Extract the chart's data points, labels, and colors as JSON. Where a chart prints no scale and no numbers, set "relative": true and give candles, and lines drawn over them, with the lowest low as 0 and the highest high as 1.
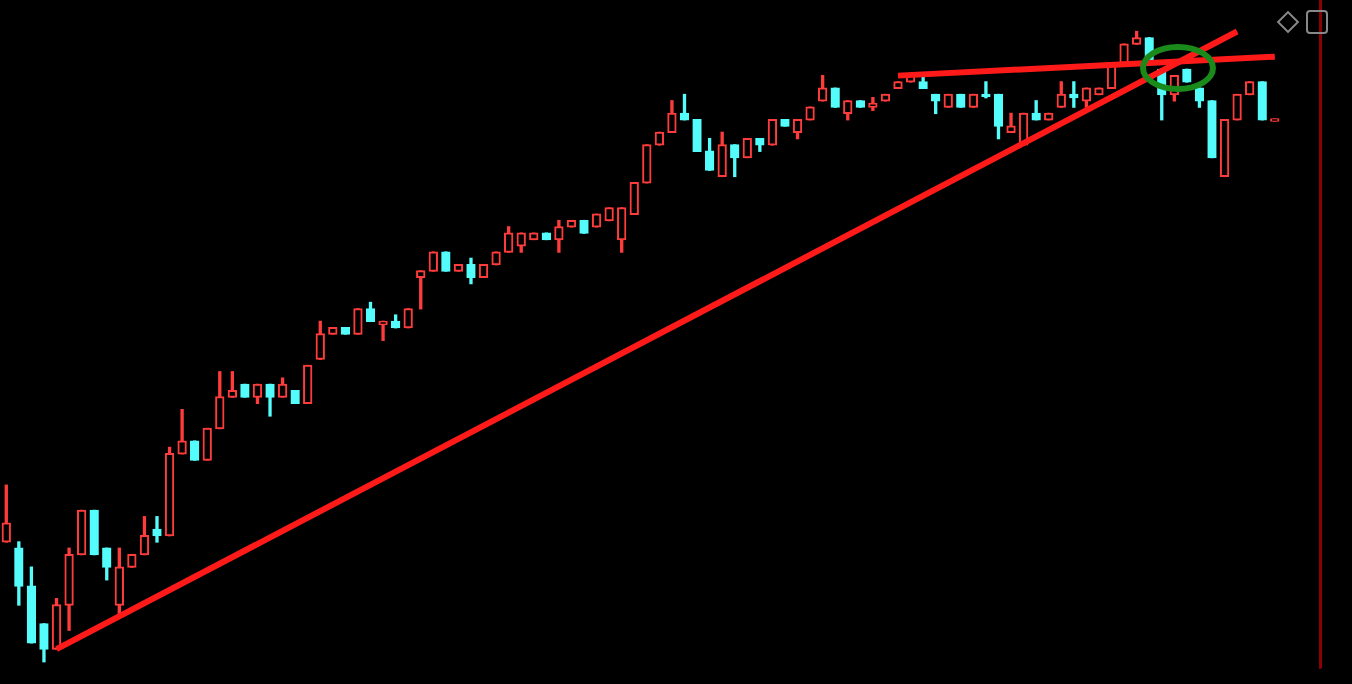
{
  "chart_data": {
    "type": "candlestick",
    "relative": true,
    "categories": [
      null,
      null,
      null,
      null,
      null,
      null,
      null,
      null,
      null,
      null,
      null,
      null,
      null,
      null,
      null,
      null,
      null,
      null,
      null,
      null,
      null,
      null,
      null,
      null,
      null,
      null,
      null,
      null,
      null,
      null,
      null,
      null,
      null,
      null,
      null,
      null,
      null,
      null,
      null,
      null,
      null,
      null,
      null,
      null,
      null,
      null,
      null,
      null,
      null,
      null,
      null,
      null,
      null,
      null,
      null,
      null,
      null,
      null,
      null,
      null,
      null,
      null,
      null,
      null,
      null,
      null,
      null,
      null,
      null,
      null,
      null,
      null,
      null,
      null,
      null,
      null,
      null,
      null,
      null,
      null,
      null,
      null,
      null,
      null,
      null,
      null,
      null,
      null,
      null,
      null,
      null,
      null,
      null,
      null,
      null,
      null,
      null,
      null,
      null,
      null,
      null,
      null
    ],
    "ohlc": [
      [
        0.19,
        0.28,
        0.19,
        0.22
      ],
      [
        0.18,
        0.19,
        0.09,
        0.12
      ],
      [
        0.12,
        0.15,
        0.03,
        0.03
      ],
      [
        0.06,
        0.06,
        0,
        0.02
      ],
      [
        0.02,
        0.1,
        0.02,
        0.09
      ],
      [
        0.09,
        0.18,
        0.05,
        0.17
      ],
      [
        0.17,
        0.24,
        0.17,
        0.24
      ],
      [
        0.24,
        0.24,
        0.17,
        0.17
      ],
      [
        0.18,
        0.18,
        0.13,
        0.15
      ],
      [
        0.09,
        0.18,
        0.07,
        0.15
      ],
      [
        0.15,
        0.17,
        0.15,
        0.17
      ],
      [
        0.17,
        0.23,
        0.17,
        0.2
      ],
      [
        0.21,
        0.23,
        0.19,
        0.2
      ],
      [
        0.2,
        0.34,
        0.2,
        0.33
      ],
      [
        0.33,
        0.4,
        0.33,
        0.35
      ],
      [
        0.35,
        0.35,
        0.32,
        0.32
      ],
      [
        0.32,
        0.37,
        0.32,
        0.37
      ],
      [
        0.37,
        0.46,
        0.37,
        0.42
      ],
      [
        0.42,
        0.46,
        0.42,
        0.43
      ],
      [
        0.44,
        0.44,
        0.42,
        0.42
      ],
      [
        0.42,
        0.44,
        0.41,
        0.44
      ],
      [
        0.44,
        0.44,
        0.39,
        0.42
      ],
      [
        0.42,
        0.45,
        0.42,
        0.44
      ],
      [
        0.43,
        0.43,
        0.41,
        0.41
      ],
      [
        0.41,
        0.47,
        0.41,
        0.47
      ],
      [
        0.48,
        0.54,
        0.48,
        0.52
      ],
      [
        0.52,
        0.53,
        0.52,
        0.53
      ],
      [
        0.53,
        0.53,
        0.52,
        0.52
      ],
      [
        0.52,
        0.56,
        0.52,
        0.56
      ],
      [
        0.56,
        0.57,
        0.54,
        0.54
      ],
      [
        0.535,
        0.54,
        0.51,
        0.54
      ],
      [
        0.54,
        0.55,
        0.53,
        0.53
      ],
      [
        0.53,
        0.56,
        0.53,
        0.56
      ],
      [
        0.61,
        0.62,
        0.56,
        0.62
      ],
      [
        0.62,
        0.65,
        0.62,
        0.65
      ],
      [
        0.65,
        0.65,
        0.62,
        0.62
      ],
      [
        0.62,
        0.63,
        0.62,
        0.63
      ],
      [
        0.63,
        0.64,
        0.6,
        0.61
      ],
      [
        0.61,
        0.63,
        0.61,
        0.63
      ],
      [
        0.63,
        0.65,
        0.63,
        0.65
      ],
      [
        0.65,
        0.69,
        0.65,
        0.68
      ],
      [
        0.66,
        0.68,
        0.65,
        0.68
      ],
      [
        0.67,
        0.68,
        0.67,
        0.68
      ],
      [
        0.68,
        0.68,
        0.67,
        0.67
      ],
      [
        0.67,
        0.7,
        0.65,
        0.69
      ],
      [
        0.69,
        0.7,
        0.69,
        0.7
      ],
      [
        0.7,
        0.7,
        0.68,
        0.68
      ],
      [
        0.69,
        0.71,
        0.69,
        0.71
      ],
      [
        0.7,
        0.72,
        0.7,
        0.72
      ],
      [
        0.67,
        0.72,
        0.65,
        0.72
      ],
      [
        0.71,
        0.76,
        0.71,
        0.76
      ],
      [
        0.76,
        0.82,
        0.76,
        0.82
      ],
      [
        0.82,
        0.84,
        0.82,
        0.84
      ],
      [
        0.84,
        0.89,
        0.84,
        0.87
      ],
      [
        0.87,
        0.9,
        0.86,
        0.86
      ],
      [
        0.86,
        0.86,
        0.81,
        0.81
      ],
      [
        0.81,
        0.83,
        0.78,
        0.78
      ],
      [
        0.77,
        0.84,
        0.77,
        0.82
      ],
      [
        0.82,
        0.82,
        0.77,
        0.8
      ],
      [
        0.8,
        0.83,
        0.8,
        0.83
      ],
      [
        0.83,
        0.83,
        0.81,
        0.82
      ],
      [
        0.82,
        0.86,
        0.82,
        0.86
      ],
      [
        0.86,
        0.86,
        0.85,
        0.85
      ],
      [
        0.84,
        0.86,
        0.83,
        0.86
      ],
      [
        0.86,
        0.88,
        0.86,
        0.88
      ],
      [
        0.89,
        0.93,
        0.89,
        0.91
      ],
      [
        0.91,
        0.91,
        0.88,
        0.88
      ],
      [
        0.87,
        0.89,
        0.86,
        0.89
      ],
      [
        0.89,
        0.89,
        0.88,
        0.88
      ],
      [
        0.88,
        0.895,
        0.875,
        0.886
      ],
      [
        0.89,
        0.9,
        0.89,
        0.9
      ],
      [
        0.91,
        0.92,
        0.91,
        0.92
      ],
      [
        0.92,
        0.93,
        0.92,
        0.93
      ],
      [
        0.92,
        0.93,
        0.91,
        0.91
      ],
      [
        0.9,
        0.9,
        0.87,
        0.89
      ],
      [
        0.88,
        0.9,
        0.88,
        0.9
      ],
      [
        0.9,
        0.9,
        0.88,
        0.88
      ],
      [
        0.88,
        0.9,
        0.88,
        0.9
      ],
      [
        0.9,
        0.92,
        0.895,
        0.897
      ],
      [
        0.9,
        0.9,
        0.83,
        0.85
      ],
      [
        0.84,
        0.87,
        0.84,
        0.85
      ],
      [
        0.82,
        0.87,
        0.82,
        0.87
      ],
      [
        0.87,
        0.89,
        0.86,
        0.86
      ],
      [
        0.86,
        0.87,
        0.86,
        0.87
      ],
      [
        0.88,
        0.92,
        0.88,
        0.9
      ],
      [
        0.9,
        0.92,
        0.88,
        0.895
      ],
      [
        0.89,
        0.91,
        0.88,
        0.91
      ],
      [
        0.9,
        0.91,
        0.9,
        0.91
      ],
      [
        0.91,
        0.95,
        0.91,
        0.95
      ],
      [
        0.95,
        0.98,
        0.95,
        0.98
      ],
      [
        0.98,
        1.0,
        0.98,
        0.99
      ],
      [
        0.99,
        0.99,
        0.95,
        0.95
      ],
      [
        0.94,
        0.94,
        0.86,
        0.9
      ],
      [
        0.9,
        0.93,
        0.89,
        0.93
      ],
      [
        0.94,
        0.94,
        0.92,
        0.92
      ],
      [
        0.91,
        0.91,
        0.88,
        0.89
      ],
      [
        0.89,
        0.89,
        0.8,
        0.8
      ],
      [
        0.77,
        0.86,
        0.77,
        0.86
      ],
      [
        0.86,
        0.9,
        0.86,
        0.9
      ],
      [
        0.9,
        0.92,
        0.9,
        0.92
      ],
      [
        0.92,
        0.92,
        0.86,
        0.86
      ],
      [
        0.858,
        0.861,
        0.858,
        0.861
      ]
    ],
    "series": [
      {
        "type": "line",
        "color": "#ff1a1a",
        "values": [
          null,
          null,
          null,
          null,
          0.02,
          null,
          null,
          null,
          null,
          null,
          null,
          null,
          null,
          null,
          null,
          null,
          null,
          null,
          null,
          null,
          null,
          null,
          null,
          null,
          null,
          null,
          null,
          null,
          null,
          null,
          null,
          null,
          null,
          null,
          null,
          null,
          null,
          null,
          null,
          null,
          null,
          null,
          null,
          null,
          null,
          null,
          null,
          null,
          null,
          null,
          null,
          null,
          null,
          null,
          null,
          null,
          null,
          null,
          null,
          null,
          null,
          null,
          null,
          null,
          null,
          null,
          null,
          null,
          null,
          null,
          null,
          null,
          null,
          null,
          null,
          null,
          null,
          null,
          null,
          null,
          null,
          null,
          null,
          null,
          null,
          null,
          null,
          null,
          null,
          null,
          null,
          null,
          null,
          null,
          null,
          null,
          null,
          null,
          1.0,
          null,
          null,
          null
        ]
      },
      {
        "type": "line",
        "color": "#ff1a1a",
        "values": [
          null,
          null,
          null,
          null,
          null,
          null,
          null,
          null,
          null,
          null,
          null,
          null,
          null,
          null,
          null,
          null,
          null,
          null,
          null,
          null,
          null,
          null,
          null,
          null,
          null,
          null,
          null,
          null,
          null,
          null,
          null,
          null,
          null,
          null,
          null,
          null,
          null,
          null,
          null,
          null,
          null,
          null,
          null,
          null,
          null,
          null,
          null,
          null,
          null,
          null,
          null,
          null,
          null,
          null,
          null,
          null,
          null,
          null,
          null,
          null,
          null,
          null,
          null,
          null,
          null,
          null,
          null,
          null,
          null,
          null,
          null,
          0.93,
          null,
          null,
          null,
          null,
          null,
          null,
          null,
          null,
          null,
          null,
          null,
          null,
          null,
          null,
          null,
          null,
          null,
          null,
          null,
          null,
          null,
          null,
          null,
          null,
          null,
          null,
          null,
          null,
          null,
          0.96
        ]
      }
    ]
  }
}
